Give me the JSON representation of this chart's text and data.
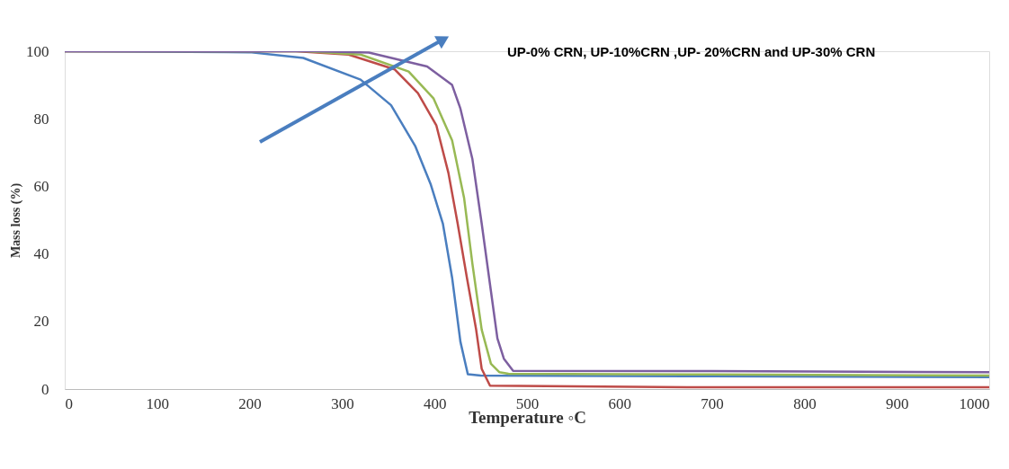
{
  "chart_data": {
    "type": "line",
    "xlabel": "Temperature ◦C",
    "ylabel": "Mass loss (%)",
    "annotations": [
      "UP-0% CRN, UP-10%CRN ,UP- 20%CRN and UP-30% CRN"
    ],
    "xlim": [
      0,
      1000
    ],
    "xticks": [
      0,
      100,
      200,
      300,
      400,
      500,
      600,
      700,
      800,
      900,
      1000
    ],
    "ylim": [
      0,
      100
    ],
    "yticks": [
      0,
      20,
      40,
      60,
      80,
      100
    ],
    "grid": false,
    "legend": false,
    "marker": "none",
    "line_style": "solid",
    "series": [
      {
        "color": "#4a7ebf",
        "x": [
          0,
          200,
          258,
          320,
          353,
          379,
          396,
          409,
          419,
          428,
          436,
          450,
          700,
          1000
        ],
        "values": [
          100,
          99.7,
          98,
          91.6,
          84,
          72,
          60.5,
          49,
          33,
          14,
          4.4,
          4,
          3.8,
          3.5
        ]
      },
      {
        "color": "#be4b48",
        "x": [
          0,
          250,
          307,
          357,
          382,
          402,
          415,
          425,
          435,
          445,
          451,
          460,
          700,
          1000
        ],
        "values": [
          100,
          100,
          99,
          94.6,
          87.6,
          78,
          64,
          49,
          33,
          17.6,
          6,
          1,
          0.5,
          0.5
        ]
      },
      {
        "color": "#98b954",
        "x": [
          0,
          260,
          320,
          372,
          399,
          419,
          432,
          441,
          451,
          461,
          470,
          480,
          700,
          1000
        ],
        "values": [
          100,
          100,
          99,
          94,
          86,
          73.6,
          56.5,
          37,
          17.6,
          7.5,
          5,
          4.5,
          4.3,
          4
        ]
      },
      {
        "color": "#7d5fa0",
        "x": [
          0,
          270,
          329,
          392,
          419,
          428,
          441,
          451,
          461,
          468,
          475,
          485,
          700,
          1000
        ],
        "values": [
          100,
          100,
          99.6,
          95.5,
          90,
          83,
          68,
          49,
          29,
          15,
          9,
          5.4,
          5.3,
          5
        ]
      }
    ]
  }
}
